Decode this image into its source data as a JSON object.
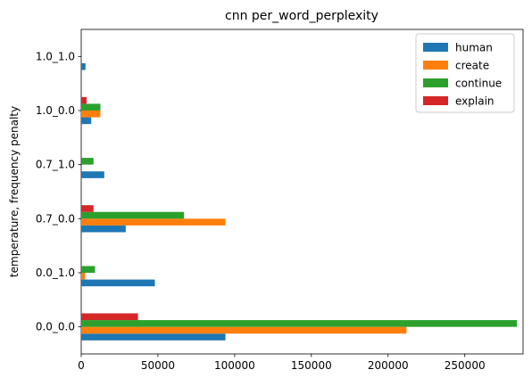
{
  "chart_data": {
    "type": "bar",
    "orientation": "horizontal",
    "title": "cnn per_word_perplexity",
    "xlabel": "",
    "ylabel": "temperature, frequency penalty",
    "xlim": [
      0,
      288000
    ],
    "xticks": [
      0,
      50000,
      100000,
      150000,
      200000,
      250000
    ],
    "xtick_labels": [
      "0",
      "50000",
      "100000",
      "150000",
      "200000",
      "250000"
    ],
    "categories": [
      "0.0_0.0",
      "0.0_1.0",
      "0.7_0.0",
      "0.7_1.0",
      "1.0_0.0",
      "1.0_1.0"
    ],
    "series": [
      {
        "name": "human",
        "color": "#1f77b4",
        "values": [
          94000,
          48000,
          29000,
          15000,
          6500,
          2800
        ]
      },
      {
        "name": "create",
        "color": "#ff7f0e",
        "values": [
          212000,
          2500,
          94000,
          0,
          12500,
          0
        ]
      },
      {
        "name": "continue",
        "color": "#2ca02c",
        "values": [
          284000,
          9000,
          67000,
          8000,
          12500,
          0
        ]
      },
      {
        "name": "explain",
        "color": "#d62728",
        "values": [
          37000,
          0,
          8000,
          0,
          3500,
          0
        ]
      }
    ],
    "legend": {
      "position": "top-right"
    },
    "grid": false
  }
}
